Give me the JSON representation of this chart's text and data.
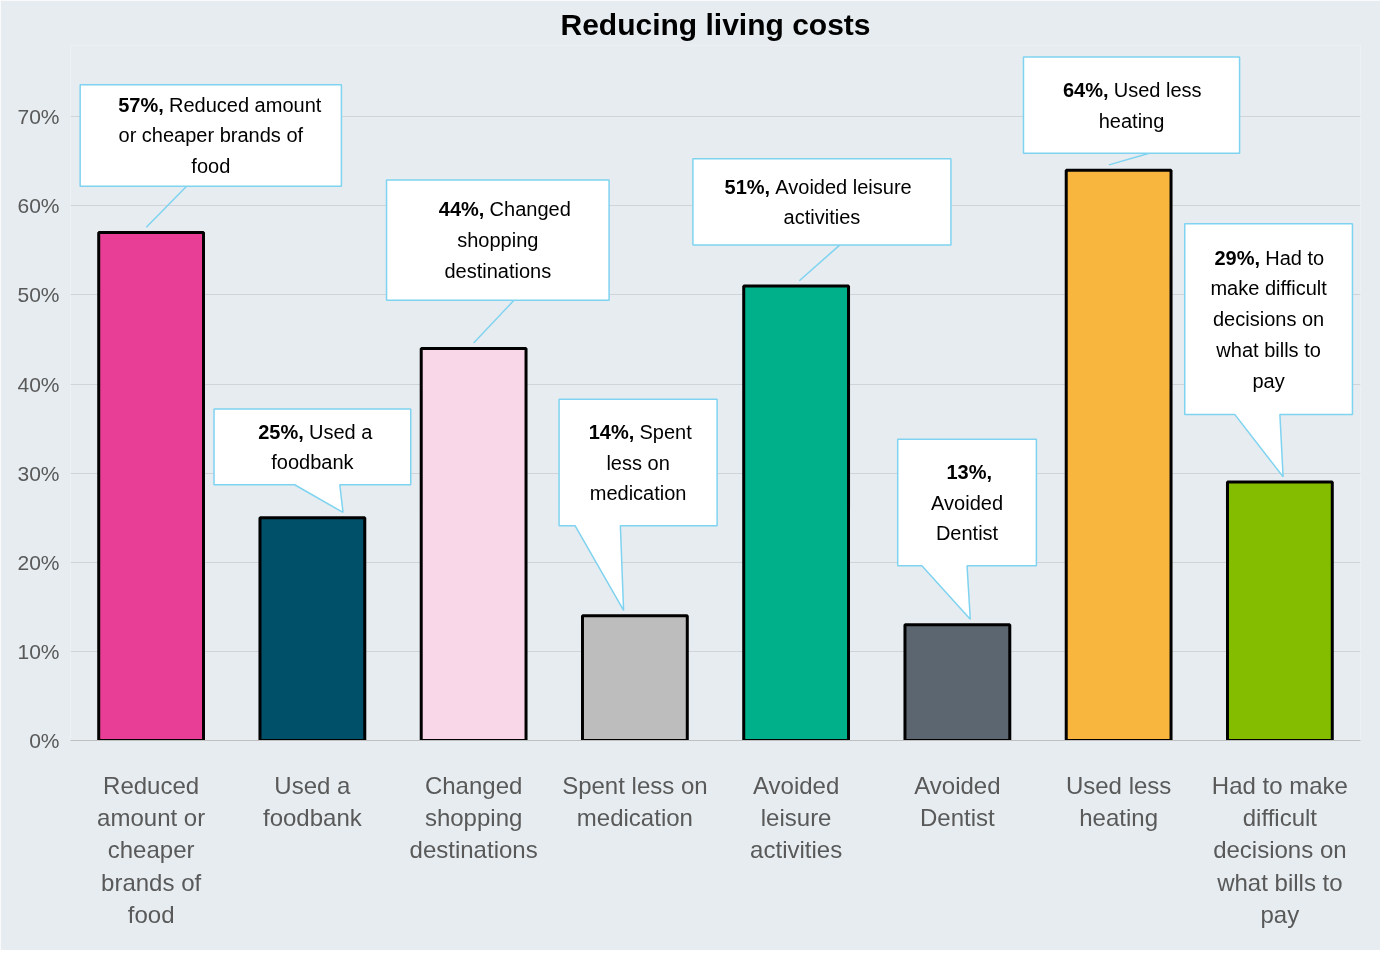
{
  "chart_data": {
    "type": "bar",
    "title": "Reducing living costs",
    "categories": [
      "Reduced amount or cheaper brands of food",
      "Used a foodbank",
      "Changed shopping destinations",
      "Spent less on medication",
      "Avoided leisure activities",
      "Avoided Dentist",
      "Used less heating",
      "Had to make difficult decisions on what bills to pay"
    ],
    "values": [
      57,
      25,
      44,
      14,
      51,
      13,
      64,
      29
    ],
    "colors": [
      "#e83e96",
      "#005069",
      "#f9d7e8",
      "#bdbdbd",
      "#00b08a",
      "#5b6670",
      "#f8b63f",
      "#84bd00"
    ],
    "ylim": [
      0,
      78
    ],
    "yticks": [
      {
        "value": 0,
        "label": "0%"
      },
      {
        "value": 10,
        "label": "10%"
      },
      {
        "value": 20,
        "label": "20%"
      },
      {
        "value": 30,
        "label": "30%"
      },
      {
        "value": 40,
        "label": "40%"
      },
      {
        "value": 50,
        "label": "50%"
      },
      {
        "value": 60,
        "label": "60%"
      },
      {
        "value": 70,
        "label": "70%"
      }
    ],
    "grid": "y",
    "annotations": [
      "57%, Reduced amount or cheaper brands of food",
      "25%, Used a foodbank",
      "44%, Changed shopping destinations",
      "14%, Spent less on medication",
      "51%, Avoided leisure activities",
      "13%, Avoided Dentist",
      "64%, Used less heating",
      "29%, Had to make difficult decisions on what bills to pay"
    ]
  }
}
